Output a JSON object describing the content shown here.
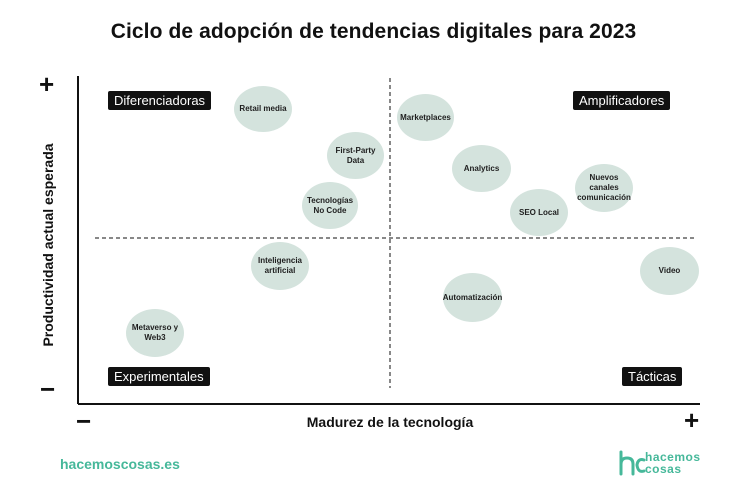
{
  "title": "Ciclo de adopción de tendencias digitales para 2023",
  "axes": {
    "y_label": "Productividad actual esperada",
    "x_label": "Madurez de la tecnología",
    "y_plus": "+",
    "y_minus": "−",
    "x_minus": "−",
    "x_plus": "+"
  },
  "quadrants": {
    "top_left": "Diferenciadoras",
    "top_right": "Amplificadores",
    "bottom_left": "Experimentales",
    "bottom_right": "Tácticas"
  },
  "bubbles": {
    "retail_media": "Retail media",
    "marketplaces": "Marketplaces",
    "first_party_data": "First-Party Data",
    "analytics": "Analytics",
    "nuevos_canales": "Nuevos canales comunicación",
    "tecnologias_no_code": "Tecnologías No Code",
    "seo_local": "SEO Local",
    "inteligencia_artificial": "Inteligencia artificial",
    "video": "Video",
    "automatizacion": "Automatización",
    "metaverso_web3": "Metaverso y Web3"
  },
  "footer": {
    "website": "hacemoscosas.es",
    "logo_line1": "hacemos",
    "logo_line2": "cosas"
  },
  "colors": {
    "bubble": "#d4e3dd",
    "label_bg": "#111111",
    "brand": "#46b89a"
  }
}
